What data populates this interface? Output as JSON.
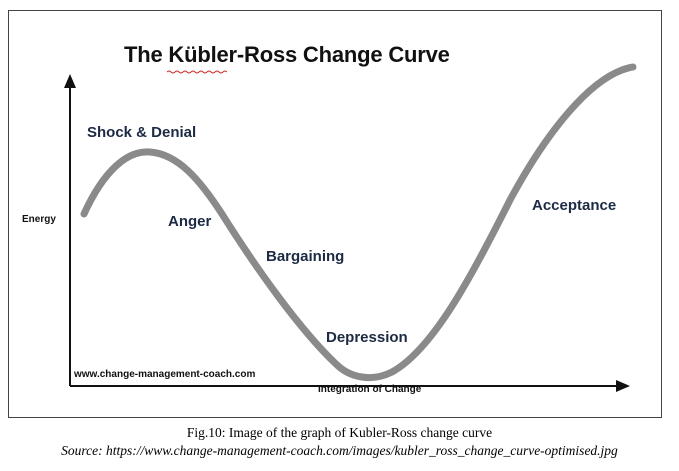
{
  "figure": {
    "title": "The Kübler-Ross Change Curve",
    "y_axis_label": "Energy",
    "x_axis_label": "Integration of Change",
    "watermark": "www.change-management-coach.com",
    "stages": [
      {
        "label": "Shock & Denial"
      },
      {
        "label": "Anger"
      },
      {
        "label": "Bargaining"
      },
      {
        "label": "Depression"
      },
      {
        "label": "Acceptance"
      }
    ],
    "curve_color": "#8a8a8a",
    "axis_color": "#111111",
    "label_color": "#1c2a44"
  },
  "caption": {
    "line1": "Fig.10: Image of the graph of Kubler-Ross change curve",
    "source_prefix": "Source: ",
    "source_url": "https://www.change-management-coach.com/images/kubler_ross_change_curve-optimised.jpg"
  }
}
